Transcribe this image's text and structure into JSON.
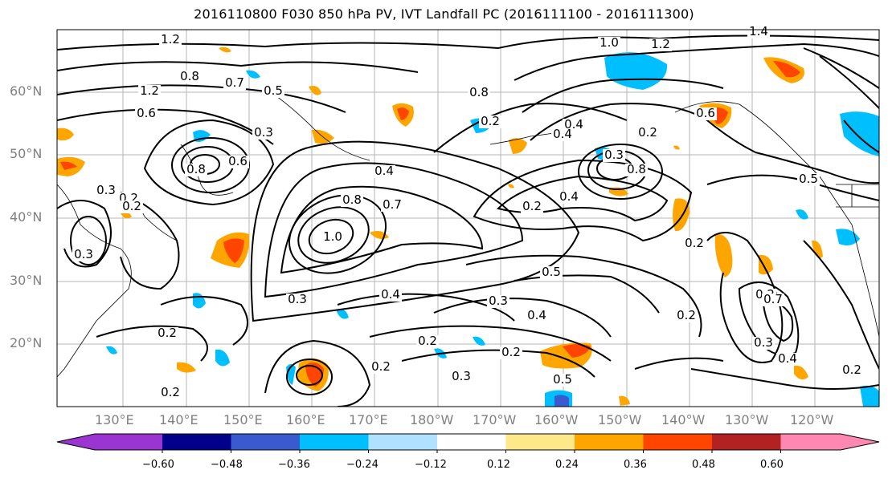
{
  "title": "2016110800 F030 850 hPa PV, IVT Landfall PC (2016111100 - 2016111300)",
  "lat_labels": [
    "60°N",
    "50°N",
    "40°N",
    "30°N",
    "20°N"
  ],
  "lon_labels": [
    "130°E",
    "140°E",
    "150°E",
    "160°E",
    "170°E",
    "180°W",
    "170°W",
    "160°W",
    "150°W",
    "140°W",
    "130°W",
    "120°W"
  ],
  "colorbar": {
    "tick_labels": [
      "−0.60",
      "−0.48",
      "−0.36",
      "−0.24",
      "−0.12",
      "0.12",
      "0.24",
      "0.36",
      "0.48",
      "0.60"
    ],
    "colors": [
      "#9b35d1",
      "#00008b",
      "#3a5bd0",
      "#00bfff",
      "#b0e2ff",
      "#ffffff",
      "#ffe88a",
      "#ffa500",
      "#ff4500",
      "#b22222",
      "#ff88b3"
    ]
  },
  "contour_labels": [
    "1.2",
    "0.8",
    "0.7",
    "0.5",
    "1.2",
    "0.6",
    "0.3",
    "0.8",
    "0.6",
    "0.3",
    "0.2",
    "0.4",
    "0.8",
    "0.7",
    "1.0",
    "0.3",
    "0.2",
    "0.4",
    "0.5",
    "0.3",
    "0.4",
    "0.2",
    "0.2",
    "0.4",
    "0.2",
    "0.5",
    "0.3",
    "0.4",
    "0.2",
    "1.0",
    "1.2",
    "1.4",
    "0.8",
    "0.6",
    "0.4",
    "0.3",
    "0.2",
    "0.5",
    "0.8",
    "0.2",
    "0.3",
    "0.4",
    "0.2",
    "0.2",
    "0.2",
    "0.2",
    "0.3",
    "0.2",
    "0.7",
    "0.2"
  ]
}
